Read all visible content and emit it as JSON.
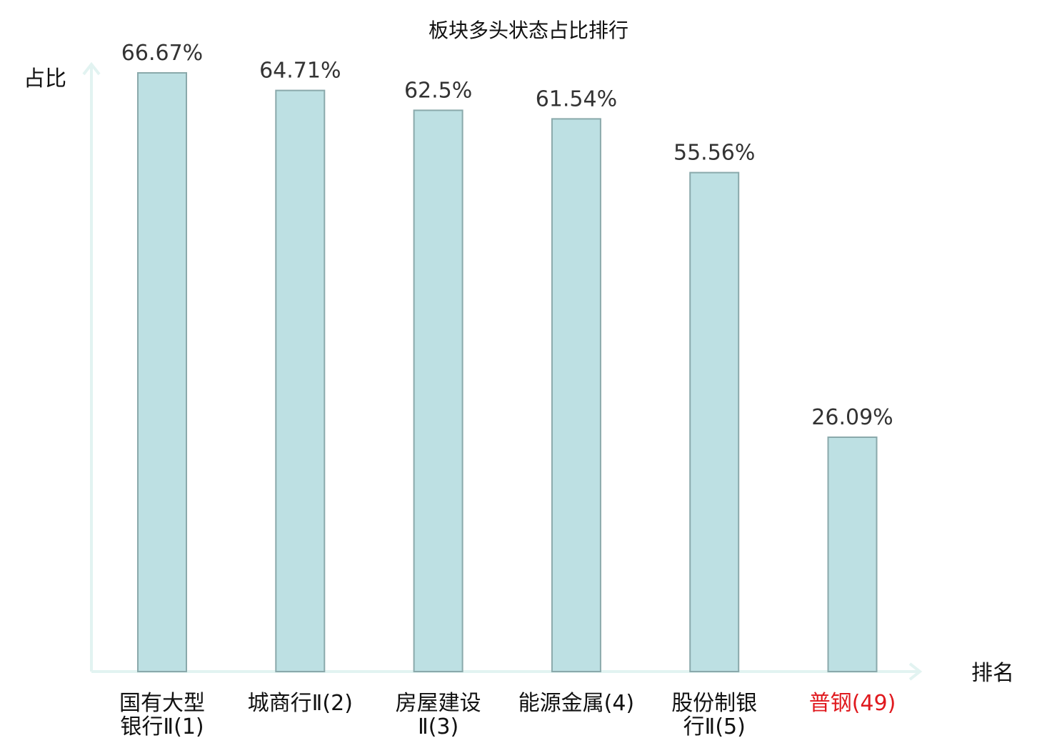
{
  "chart_data": {
    "type": "bar",
    "title": "板块多头状态占比排行",
    "ylabel": "占比",
    "xlabel": "排名",
    "ylim": [
      0,
      70
    ],
    "categories": [
      [
        "国有大型",
        "银行Ⅱ(1)"
      ],
      [
        "城商行Ⅱ(2)"
      ],
      [
        "房屋建设",
        "Ⅱ(3)"
      ],
      [
        "能源金属(4)"
      ],
      [
        "股份制银",
        "行Ⅱ(5)"
      ],
      [
        "普钢(49)"
      ]
    ],
    "values": [
      66.67,
      64.71,
      62.5,
      61.54,
      55.56,
      26.09
    ],
    "value_labels": [
      "66.67%",
      "64.71%",
      "62.5%",
      "61.54%",
      "55.56%",
      "26.09%"
    ],
    "highlight_index": 5,
    "colors": {
      "bar_fill": "#bde0e3",
      "bar_stroke": "#8aa9ab",
      "axis": "#e2f3f1",
      "highlight_text": "#e0191e"
    }
  }
}
